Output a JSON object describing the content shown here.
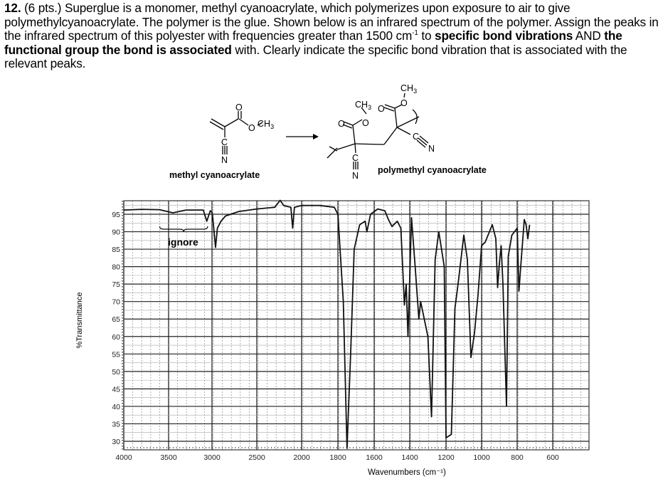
{
  "question": {
    "number": "12.",
    "points": "(6 pts.)",
    "text_1": " Superglue is a monomer, methyl cyanoacrylate, which polymerizes upon exposure to air to give polymethylcyanoacrylate.  The polymer is the glue. Shown below is an infrared spectrum of the polymer. Assign the peaks in the infrared spectrum of this polyester with frequencies greater than 1500 cm",
    "superscript": "-1",
    "text_2": " to ",
    "bold_1": "specific bond vibrations",
    "text_3": " AND ",
    "bold_2": "the functional group the bond is associated",
    "text_4": " with.  Clearly indicate the specific bond vibration that is associated with the relevant peaks."
  },
  "structures": {
    "monomer_label": "methyl cyanoacrylate",
    "polymer_label": "polymethyl cyanoacrylate",
    "atoms": {
      "O": "O",
      "CH3": "CH3",
      "C": "C",
      "N": "N"
    }
  },
  "chart_data": {
    "type": "line",
    "title": "",
    "xlabel": "Wavenumbers (cm⁻¹)",
    "ylabel": "%Transmittance",
    "x_ticks": [
      4000,
      3500,
      3000,
      2500,
      2000,
      1800,
      1600,
      1400,
      1200,
      1000,
      800,
      600
    ],
    "y_ticks": [
      95,
      90,
      85,
      80,
      75,
      70,
      65,
      60,
      55,
      50,
      45,
      40,
      35,
      30
    ],
    "xlim": [
      4000,
      500
    ],
    "ylim": [
      27,
      98
    ],
    "x_scale_note": "axis scale changes at 2000 cm-1 (compressed above 2000)",
    "grid": true,
    "annotations": [
      {
        "text": "ignore",
        "x_range": [
          3600,
          3050
        ],
        "y": 91
      }
    ],
    "series": [
      {
        "name": "polymethyl cyanoacrylate IR spectrum",
        "points": [
          [
            4000,
            96.2
          ],
          [
            3800,
            96.4
          ],
          [
            3600,
            96.3
          ],
          [
            3450,
            95.4
          ],
          [
            3300,
            96.2
          ],
          [
            3100,
            96.2
          ],
          [
            3060,
            93
          ],
          [
            3020,
            96
          ],
          [
            3000,
            95.5
          ],
          [
            2990,
            93.5
          ],
          [
            2960,
            85.5
          ],
          [
            2940,
            91
          ],
          [
            2900,
            93
          ],
          [
            2850,
            94.5
          ],
          [
            2700,
            95.8
          ],
          [
            2500,
            96.5
          ],
          [
            2300,
            97
          ],
          [
            2240,
            99
          ],
          [
            2200,
            97.5
          ],
          [
            2120,
            97
          ],
          [
            2100,
            91
          ],
          [
            2080,
            97
          ],
          [
            2000,
            97.5
          ],
          [
            1900,
            97.5
          ],
          [
            1820,
            97
          ],
          [
            1800,
            95
          ],
          [
            1770,
            70
          ],
          [
            1750,
            28
          ],
          [
            1730,
            55
          ],
          [
            1710,
            85
          ],
          [
            1680,
            92
          ],
          [
            1650,
            93
          ],
          [
            1640,
            90
          ],
          [
            1620,
            95
          ],
          [
            1580,
            96.5
          ],
          [
            1540,
            96
          ],
          [
            1520,
            93.5
          ],
          [
            1500,
            91.5
          ],
          [
            1470,
            93
          ],
          [
            1450,
            91
          ],
          [
            1430,
            69
          ],
          [
            1420,
            75
          ],
          [
            1410,
            60
          ],
          [
            1390,
            94
          ],
          [
            1370,
            80
          ],
          [
            1350,
            65
          ],
          [
            1340,
            70
          ],
          [
            1300,
            60
          ],
          [
            1280,
            37
          ],
          [
            1260,
            82
          ],
          [
            1240,
            90
          ],
          [
            1210,
            80
          ],
          [
            1200,
            31
          ],
          [
            1170,
            32
          ],
          [
            1150,
            68
          ],
          [
            1130,
            76
          ],
          [
            1100,
            89
          ],
          [
            1080,
            82
          ],
          [
            1060,
            54
          ],
          [
            1040,
            61
          ],
          [
            1020,
            72
          ],
          [
            1000,
            86
          ],
          [
            980,
            87
          ],
          [
            940,
            92
          ],
          [
            920,
            88
          ],
          [
            910,
            74
          ],
          [
            900,
            81
          ],
          [
            890,
            86
          ],
          [
            880,
            75
          ],
          [
            860,
            40
          ],
          [
            850,
            83
          ],
          [
            830,
            89
          ],
          [
            800,
            91
          ],
          [
            790,
            73
          ],
          [
            780,
            80
          ],
          [
            760,
            93.5
          ],
          [
            750,
            92
          ],
          [
            740,
            88
          ],
          [
            730,
            92
          ]
        ]
      }
    ]
  },
  "chart_labels": {
    "ylabel": "%Transmittance",
    "xlabel": "Wavenumbers (cm⁻¹)",
    "ignore": "ignore",
    "x_tick_labels": [
      "4000",
      "3500",
      "3000",
      "2500",
      "2000",
      "1800",
      "1600",
      "1400",
      "1200",
      "1000",
      "800",
      "600"
    ],
    "y_tick_labels": [
      "95",
      "90",
      "85",
      "80",
      "75",
      "70",
      "65",
      "60",
      "55",
      "50",
      "45",
      "40",
      "35",
      "30"
    ]
  }
}
